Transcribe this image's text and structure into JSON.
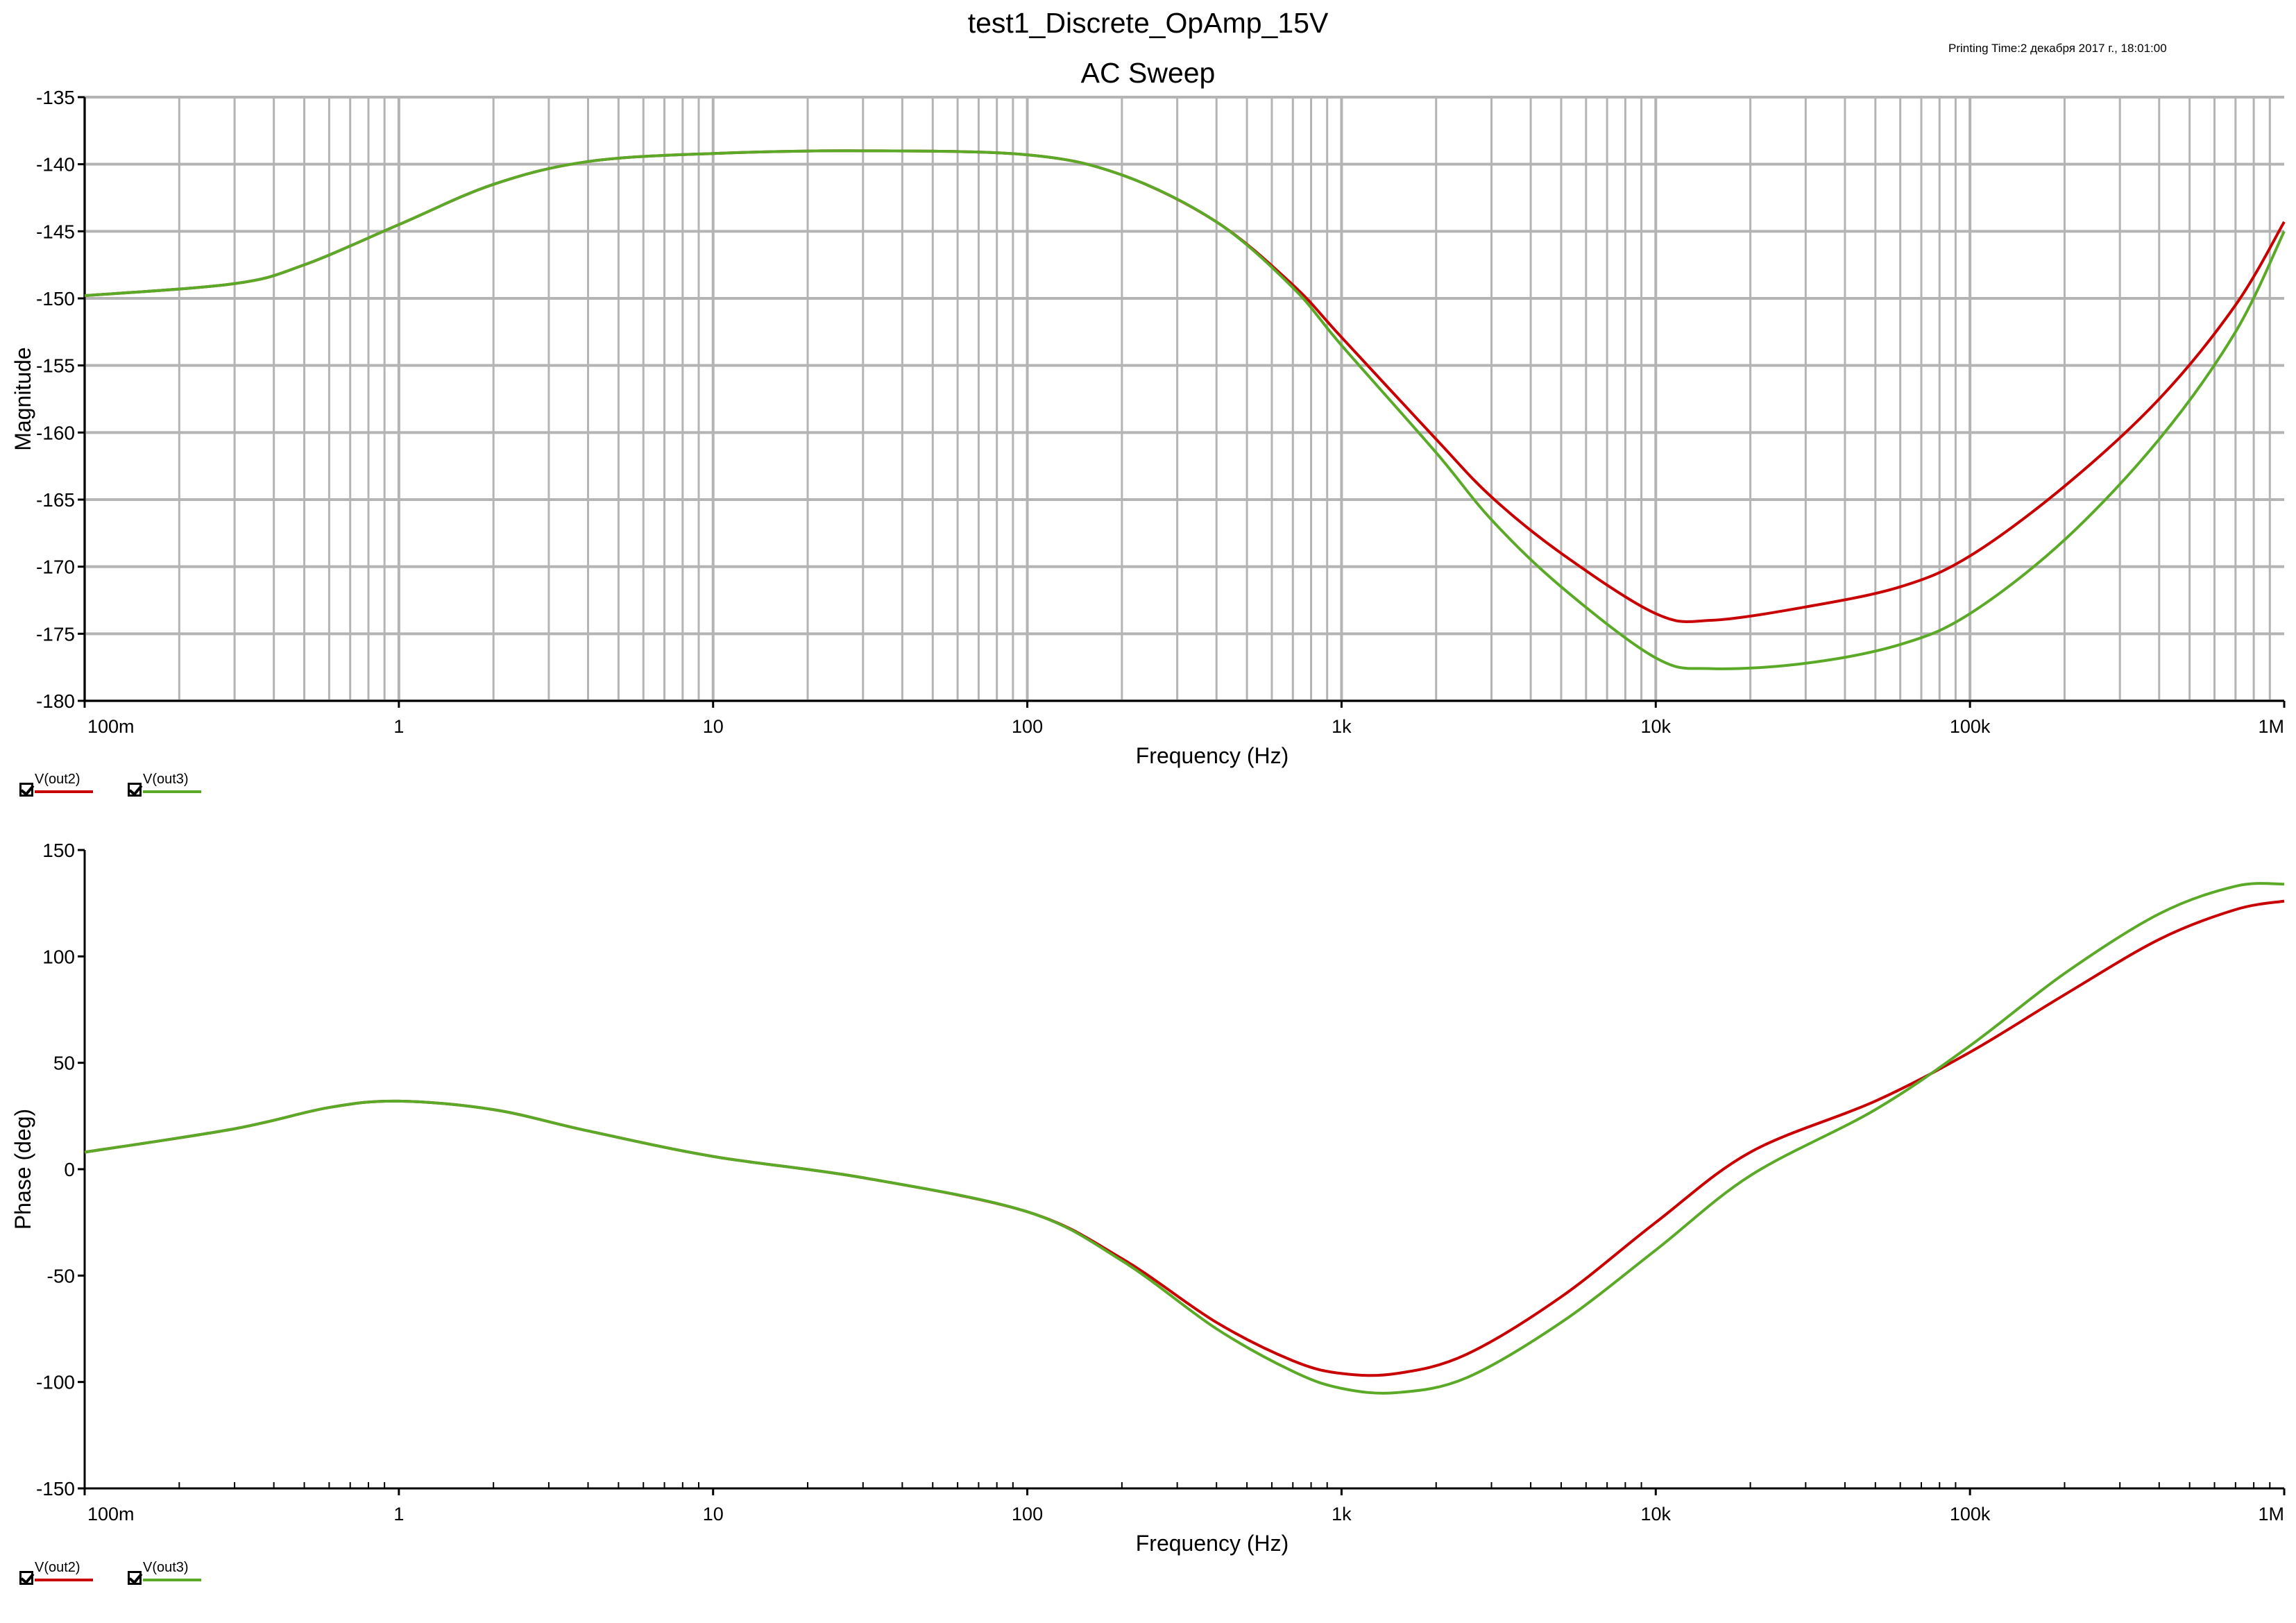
{
  "header": {
    "title": "test1_Discrete_OpAmp_15V",
    "subtitle": "AC Sweep",
    "printing_time": "Printing Time:2 декабря 2017 г., 18:01:00"
  },
  "colors": {
    "out2": "#c80000",
    "out3": "#5aaa28",
    "grid": "#b4b4b4",
    "axis": "#000000"
  },
  "legend": [
    {
      "label": "V(out2)",
      "color": "#c80000",
      "checked": true
    },
    {
      "label": "V(out3)",
      "color": "#5aaa28",
      "checked": true
    }
  ],
  "chart_data": [
    {
      "type": "line",
      "title": "AC Sweep",
      "xlabel": "Frequency (Hz)",
      "ylabel": "Magnitude",
      "x_scale": "log",
      "xlim": [
        0.1,
        1000000
      ],
      "ylim": [
        -180,
        -135
      ],
      "grid": true,
      "x_ticks": [
        0.1,
        1,
        10,
        100,
        1000,
        10000,
        100000,
        1000000
      ],
      "x_tick_labels": [
        "100m",
        "1",
        "10",
        "100",
        "1k",
        "10k",
        "100k",
        "1M"
      ],
      "y_ticks": [
        -135,
        -140,
        -145,
        -150,
        -155,
        -160,
        -165,
        -170,
        -175,
        -180
      ],
      "y_tick_labels": [
        "-135",
        "-140",
        "-145",
        "-150",
        "-155",
        "-160",
        "-165",
        "-170",
        "-175",
        "-180"
      ],
      "legend_position": "bottom-left",
      "series": [
        {
          "name": "V(out2)",
          "color": "#c80000",
          "x": [
            0.1,
            0.3,
            0.5,
            1,
            2,
            4,
            10,
            30,
            100,
            200,
            400,
            700,
            1000,
            2000,
            3000,
            5000,
            10000,
            15000,
            30000,
            60000,
            100000,
            200000,
            400000,
            700000,
            1000000
          ],
          "y": [
            -149.8,
            -148.9,
            -147.5,
            -144.5,
            -141.5,
            -139.8,
            -139.2,
            -139.0,
            -139.3,
            -140.8,
            -144.3,
            -149.0,
            -152.9,
            -160.5,
            -164.8,
            -169.0,
            -173.5,
            -174.0,
            -173.0,
            -171.5,
            -169.2,
            -164.0,
            -157.5,
            -150.5,
            -144.3
          ]
        },
        {
          "name": "V(out3)",
          "color": "#5aaa28",
          "x": [
            0.1,
            0.3,
            0.5,
            1,
            2,
            4,
            10,
            30,
            100,
            200,
            400,
            700,
            1000,
            2000,
            3000,
            5000,
            10000,
            15000,
            30000,
            60000,
            100000,
            200000,
            400000,
            700000,
            1000000
          ],
          "y": [
            -149.8,
            -148.9,
            -147.5,
            -144.5,
            -141.5,
            -139.8,
            -139.2,
            -139.0,
            -139.3,
            -140.8,
            -144.3,
            -149.2,
            -153.5,
            -161.5,
            -166.5,
            -171.5,
            -176.8,
            -177.6,
            -177.2,
            -175.8,
            -173.5,
            -168.0,
            -160.5,
            -152.5,
            -145.0
          ]
        }
      ]
    },
    {
      "type": "line",
      "xlabel": "Frequency (Hz)",
      "ylabel": "Phase (deg)",
      "x_scale": "log",
      "xlim": [
        0.1,
        1000000
      ],
      "ylim": [
        -150,
        150
      ],
      "grid": false,
      "x_ticks": [
        0.1,
        1,
        10,
        100,
        1000,
        10000,
        100000,
        1000000
      ],
      "x_tick_labels": [
        "100m",
        "1",
        "10",
        "100",
        "1k",
        "10k",
        "100k",
        "1M"
      ],
      "y_ticks": [
        150,
        100,
        50,
        0,
        -50,
        -100,
        -150
      ],
      "y_tick_labels": [
        "150",
        "100",
        "50",
        "0",
        "-50",
        "-100",
        "-150"
      ],
      "legend_position": "bottom-left",
      "series": [
        {
          "name": "V(out2)",
          "color": "#c80000",
          "x": [
            0.1,
            0.3,
            0.6,
            1,
            2,
            4,
            10,
            30,
            100,
            200,
            400,
            700,
            1000,
            1500,
            2500,
            5000,
            10000,
            20000,
            50000,
            100000,
            200000,
            400000,
            700000,
            1000000
          ],
          "y": [
            8,
            19,
            29,
            32,
            28,
            18,
            6,
            -4,
            -20,
            -42,
            -72,
            -90,
            -96,
            -96,
            -87,
            -60,
            -25,
            8,
            32,
            55,
            82,
            108,
            122,
            126
          ]
        },
        {
          "name": "V(out3)",
          "color": "#5aaa28",
          "x": [
            0.1,
            0.3,
            0.6,
            1,
            2,
            4,
            10,
            30,
            100,
            200,
            400,
            700,
            1000,
            1500,
            2500,
            5000,
            10000,
            20000,
            50000,
            100000,
            200000,
            400000,
            700000,
            1000000
          ],
          "y": [
            8,
            19,
            29,
            32,
            28,
            18,
            6,
            -4,
            -20,
            -43,
            -75,
            -95,
            -103,
            -105,
            -98,
            -72,
            -38,
            -3,
            28,
            58,
            92,
            120,
            133,
            134
          ]
        }
      ]
    }
  ]
}
